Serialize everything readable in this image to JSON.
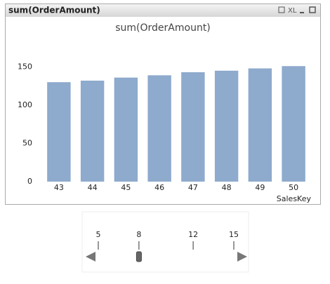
{
  "window": {
    "title": "sum(OrderAmount)",
    "export_label": "XL"
  },
  "chart_data": {
    "type": "bar",
    "title": "sum(OrderAmount)",
    "categories": [
      "43",
      "44",
      "45",
      "46",
      "47",
      "48",
      "49",
      "50"
    ],
    "values": [
      130,
      132,
      136,
      139,
      143,
      145,
      148,
      151
    ],
    "color": "#8eaacd",
    "ylim": [
      0,
      165
    ],
    "yticks": [
      0,
      50,
      100,
      150
    ],
    "x_label": "SalesKey",
    "grid": false
  },
  "slider": {
    "range": [
      5,
      15
    ],
    "ticks": [
      5,
      8,
      12,
      15
    ],
    "value": 8
  }
}
